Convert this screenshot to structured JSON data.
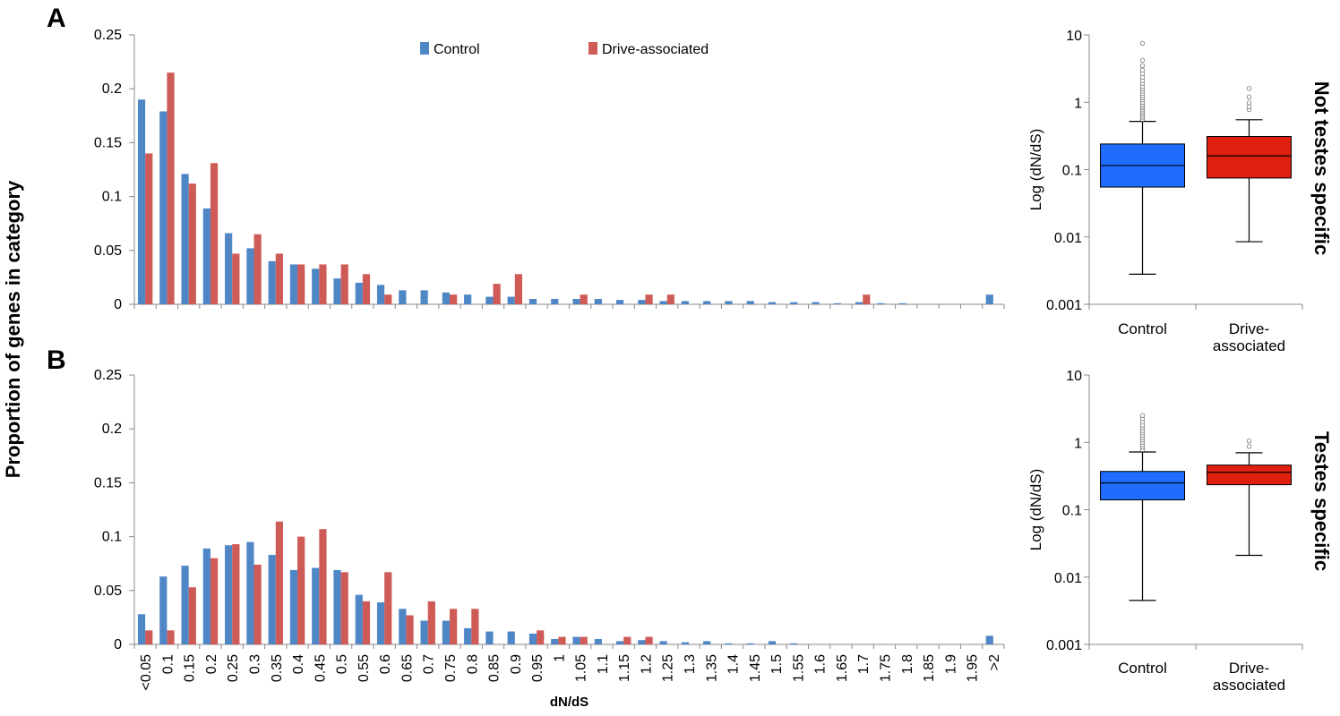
{
  "colors": {
    "control_bar": "#4f86c6",
    "drive_bar": "#cf5b57",
    "control_box": "#1f6cff",
    "drive_box": "#e0200f",
    "axis": "#888888"
  },
  "panels": {
    "A": "A",
    "B": "B",
    "shared_ylabel": "Proportion of genes in category",
    "side_label_A": "Not testes specific",
    "side_label_B": "Testes specific"
  },
  "chart_data": [
    {
      "type": "bar",
      "panel": "A",
      "xlabel": "",
      "ylabel": "Proportion of genes in category",
      "ylim": [
        0,
        0.25
      ],
      "yticks": [
        "0",
        "0.05",
        "0.1",
        "0.15",
        "0.2",
        "0.25"
      ],
      "legend": "top-center",
      "categories": [
        "<0.05",
        "0.1",
        "0.15",
        "0.2",
        "0.25",
        "0.3",
        "0.35",
        "0.4",
        "0.45",
        "0.5",
        "0.55",
        "0.6",
        "0.65",
        "0.7",
        "0.75",
        "0.8",
        "0.85",
        "0.9",
        "0.95",
        "1",
        "1.05",
        "1.1",
        "1.15",
        "1.2",
        "1.25",
        "1.3",
        "1.35",
        "1.4",
        "1.45",
        "1.5",
        "1.55",
        "1.6",
        "1.65",
        "1.7",
        "1.75",
        "1.8",
        "1.85",
        "1.9",
        "1.95",
        ">2"
      ],
      "series": [
        {
          "name": "Control",
          "values": [
            0.19,
            0.179,
            0.121,
            0.089,
            0.066,
            0.052,
            0.04,
            0.037,
            0.033,
            0.024,
            0.02,
            0.018,
            0.013,
            0.013,
            0.011,
            0.009,
            0.007,
            0.007,
            0.005,
            0.005,
            0.005,
            0.005,
            0.004,
            0.004,
            0.003,
            0.003,
            0.003,
            0.003,
            0.003,
            0.002,
            0.002,
            0.002,
            0.001,
            0.002,
            0.001,
            0.001,
            0,
            0,
            0,
            0.009
          ]
        },
        {
          "name": "Drive-associated",
          "values": [
            0.14,
            0.215,
            0.112,
            0.131,
            0.047,
            0.065,
            0.047,
            0.037,
            0.037,
            0.037,
            0.028,
            0.009,
            0,
            0,
            0.009,
            0,
            0.019,
            0.028,
            0,
            0,
            0.009,
            0,
            0,
            0.009,
            0.009,
            0,
            0,
            0,
            0,
            0,
            0,
            0,
            0,
            0.009,
            0,
            0,
            0,
            0,
            0,
            0
          ]
        }
      ]
    },
    {
      "type": "bar",
      "panel": "B",
      "xlabel": "dN/dS",
      "ylabel": "Proportion of genes in category",
      "ylim": [
        0,
        0.25
      ],
      "yticks": [
        "0",
        "0.05",
        "0.1",
        "0.15",
        "0.2",
        "0.25"
      ],
      "categories": [
        "<0.05",
        "0.1",
        "0.15",
        "0.2",
        "0.25",
        "0.3",
        "0.35",
        "0.4",
        "0.45",
        "0.5",
        "0.55",
        "0.6",
        "0.65",
        "0.7",
        "0.75",
        "0.8",
        "0.85",
        "0.9",
        "0.95",
        "1",
        "1.05",
        "1.1",
        "1.15",
        "1.2",
        "1.25",
        "1.3",
        "1.35",
        "1.4",
        "1.45",
        "1.5",
        "1.55",
        "1.6",
        "1.65",
        "1.7",
        "1.75",
        "1.8",
        "1.85",
        "1.9",
        "1.95",
        ">2"
      ],
      "series": [
        {
          "name": "Control",
          "values": [
            0.028,
            0.063,
            0.073,
            0.089,
            0.092,
            0.095,
            0.083,
            0.069,
            0.071,
            0.069,
            0.046,
            0.039,
            0.033,
            0.022,
            0.022,
            0.015,
            0.012,
            0.012,
            0.01,
            0.005,
            0.007,
            0.005,
            0.003,
            0.004,
            0.003,
            0.002,
            0.003,
            0.001,
            0.001,
            0.003,
            0.001,
            0,
            0,
            0,
            0,
            0,
            0,
            0,
            0,
            0.008
          ]
        },
        {
          "name": "Drive-associated",
          "values": [
            0.013,
            0.013,
            0.053,
            0.08,
            0.093,
            0.074,
            0.114,
            0.1,
            0.107,
            0.067,
            0.04,
            0.067,
            0.027,
            0.04,
            0.033,
            0.033,
            0,
            0,
            0.013,
            0.007,
            0.007,
            0,
            0.007,
            0.007,
            0,
            0,
            0,
            0,
            0,
            0,
            0,
            0,
            0,
            0,
            0,
            0,
            0,
            0,
            0,
            0
          ]
        }
      ]
    },
    {
      "type": "box",
      "panel": "A",
      "ylabel": "Log (dN/dS)",
      "yscale": "log",
      "ylim": [
        0.001,
        10
      ],
      "yticks": [
        "0.001",
        "0.01",
        "0.1",
        "1",
        "10"
      ],
      "categories": [
        "Control",
        "Drive-associated"
      ],
      "labels": [
        [
          "Control"
        ],
        [
          "Drive-",
          "associated"
        ]
      ],
      "boxes": [
        {
          "whisker_low": 0.0028,
          "q1": 0.055,
          "median": 0.115,
          "q3": 0.24,
          "whisker_high": 0.52,
          "outliers": [
            0.56,
            0.6,
            0.64,
            0.68,
            0.72,
            0.77,
            0.82,
            0.87,
            0.93,
            1.0,
            1.08,
            1.16,
            1.25,
            1.35,
            1.46,
            1.58,
            1.72,
            1.9,
            2.1,
            2.35,
            2.65,
            3.0,
            3.5,
            4.2,
            7.5
          ]
        },
        {
          "whisker_low": 0.0085,
          "q1": 0.075,
          "median": 0.16,
          "q3": 0.31,
          "whisker_high": 0.55,
          "outliers": [
            0.78,
            0.86,
            0.98,
            1.2,
            1.6
          ]
        }
      ]
    },
    {
      "type": "box",
      "panel": "B",
      "ylabel": "Log (dN/dS)",
      "yscale": "log",
      "ylim": [
        0.001,
        10
      ],
      "yticks": [
        "0.001",
        "0.01",
        "0.1",
        "1",
        "10"
      ],
      "categories": [
        "Control",
        "Drive-associated"
      ],
      "labels": [
        [
          "Control"
        ],
        [
          "Drive-",
          "associated"
        ]
      ],
      "boxes": [
        {
          "whisker_low": 0.0045,
          "q1": 0.14,
          "median": 0.25,
          "q3": 0.37,
          "whisker_high": 0.72,
          "outliers": [
            0.78,
            0.85,
            0.92,
            1.0,
            1.08,
            1.17,
            1.27,
            1.38,
            1.5,
            1.65,
            1.8,
            2.0,
            2.25,
            2.5
          ]
        },
        {
          "whisker_low": 0.021,
          "q1": 0.235,
          "median": 0.36,
          "q3": 0.46,
          "whisker_high": 0.7,
          "outliers": [
            0.87,
            1.05
          ]
        }
      ]
    }
  ]
}
